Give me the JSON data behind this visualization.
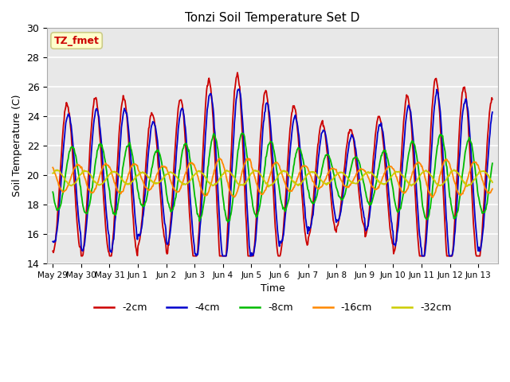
{
  "title": "Tonzi Soil Temperature Set D",
  "xlabel": "Time",
  "ylabel": "Soil Temperature (C)",
  "ylim": [
    14,
    30
  ],
  "background_color": "#e8e8e8",
  "legend_label": "TZ_fmet",
  "legend_box_color": "#ffffcc",
  "legend_box_edge": "#cccc88",
  "series_colors": {
    "-2cm": "#cc0000",
    "-4cm": "#0000cc",
    "-8cm": "#00bb00",
    "-16cm": "#ff8800",
    "-32cm": "#cccc00"
  },
  "tick_labels": [
    "May 29",
    "May 30",
    "May 31",
    "Jun 1",
    "Jun 2",
    "Jun 3",
    "Jun 4",
    "Jun 5",
    "Jun 6",
    "Jun 7",
    "Jun 8",
    "Jun 9",
    "Jun 10",
    "Jun 11",
    "Jun 12",
    "Jun 13"
  ],
  "tick_positions": [
    0,
    1,
    2,
    3,
    4,
    5,
    6,
    7,
    8,
    9,
    10,
    11,
    12,
    13,
    14,
    15
  ],
  "yticks": [
    14,
    16,
    18,
    20,
    22,
    24,
    26,
    28,
    30
  ]
}
